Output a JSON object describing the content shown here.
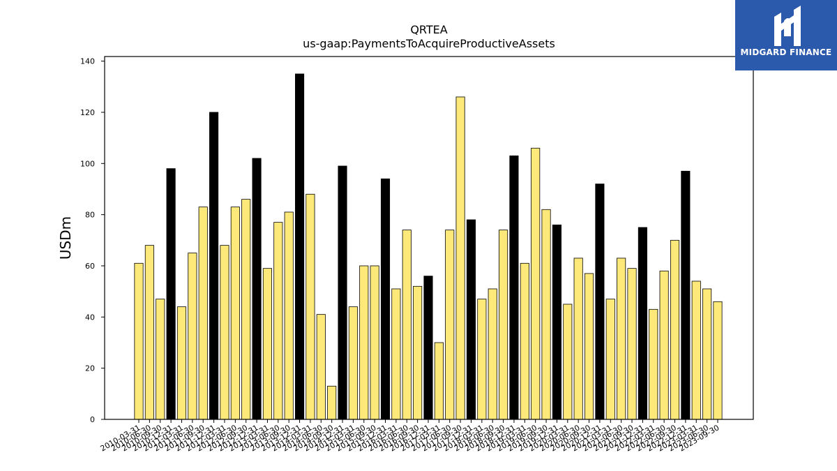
{
  "chart_data": {
    "type": "bar",
    "title": "QRTEA",
    "subtitle": "us-gaap:PaymentsToAcquireProductiveAssets",
    "xlabel": "",
    "ylabel": "USDm",
    "ylim": [
      0,
      140
    ],
    "yticks": [
      0,
      20,
      40,
      60,
      80,
      100,
      120,
      140
    ],
    "grid": false,
    "legend": "none",
    "colors": {
      "quarter": "#fde97a",
      "annual": "#000000",
      "edge": "#000000"
    },
    "categories": [
      "2010-03-31",
      "2010-06-30",
      "2010-09-30",
      "2010-12-31",
      "2011-03-31",
      "2011-06-30",
      "2011-09-30",
      "2011-12-31",
      "2012-03-31",
      "2012-06-30",
      "2012-09-30",
      "2012-12-31",
      "2013-03-31",
      "2013-06-30",
      "2013-09-30",
      "2013-12-31",
      "2014-03-31",
      "2014-06-30",
      "2014-09-30",
      "2014-12-31",
      "2015-03-31",
      "2015-06-30",
      "2015-09-30",
      "2015-12-31",
      "2016-03-31",
      "2016-06-30",
      "2016-09-30",
      "2016-12-31",
      "2017-03-31",
      "2017-06-30",
      "2017-09-30",
      "2017-12-31",
      "2018-03-31",
      "2018-06-30",
      "2018-09-30",
      "2018-12-31",
      "2019-03-31",
      "2019-06-30",
      "2019-09-30",
      "2019-12-31",
      "2020-03-31",
      "2020-06-30",
      "2020-09-30",
      "2020-12-31",
      "2021-03-31",
      "2021-06-30",
      "2021-09-30",
      "2021-12-31",
      "2022-03-31",
      "2022-06-30",
      "2022-09-30",
      "2022-12-31",
      "2023-03-31",
      "2023-06-30",
      "2023-09-30"
    ],
    "values": [
      61,
      68,
      47,
      98,
      44,
      65,
      83,
      120,
      68,
      83,
      86,
      102,
      59,
      77,
      81,
      135,
      88,
      41,
      13,
      99,
      44,
      60,
      60,
      94,
      51,
      74,
      52,
      56,
      30,
      74,
      126,
      78,
      47,
      51,
      74,
      103,
      61,
      106,
      82,
      76,
      45,
      63,
      57,
      92,
      47,
      63,
      59,
      75,
      43,
      58,
      70,
      97,
      54,
      51,
      46
    ],
    "annual": [
      false,
      false,
      false,
      true,
      false,
      false,
      false,
      true,
      false,
      false,
      false,
      true,
      false,
      false,
      false,
      true,
      false,
      false,
      false,
      true,
      false,
      false,
      false,
      true,
      false,
      false,
      false,
      true,
      false,
      false,
      false,
      true,
      false,
      false,
      false,
      true,
      false,
      false,
      false,
      true,
      false,
      false,
      false,
      true,
      false,
      false,
      false,
      true,
      false,
      false,
      false,
      true,
      false,
      false,
      false
    ]
  },
  "logo": {
    "text": "MIDGARD FINANCE"
  }
}
